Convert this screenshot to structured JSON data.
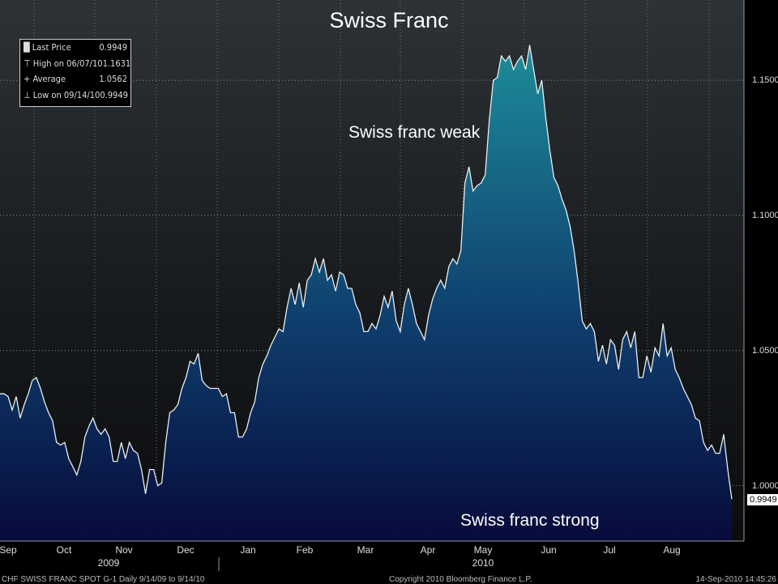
{
  "chart_data": {
    "type": "area",
    "title": "Swiss Franc",
    "annotations": [
      "Swiss franc weak",
      "Swiss franc strong"
    ],
    "x_tick_labels": [
      "Sep",
      "Oct",
      "Nov",
      "Dec",
      "Jan",
      "Feb",
      "Mar",
      "Apr",
      "May",
      "Jun",
      "Jul",
      "Aug"
    ],
    "year_labels": [
      "2009",
      "2010"
    ],
    "y_tick_labels": [
      "1.1500",
      "1.1000",
      "1.0500",
      "1.0000"
    ],
    "y_ticks": [
      1.15,
      1.1,
      1.05,
      1.0
    ],
    "ylim": [
      0.9795,
      1.1797
    ],
    "grid": true,
    "last_price_label": "0.9949",
    "legend": [
      {
        "label": "Last Price",
        "value": "0.9949",
        "icon": "square-icon"
      },
      {
        "label": "High on 06/07/10",
        "value": "1.1631",
        "icon": "high-marker-icon"
      },
      {
        "label": "Average",
        "value": "1.0562",
        "icon": "average-marker-icon"
      },
      {
        "label": "Low on 09/14/10",
        "value": "0.9949",
        "icon": "low-marker-icon"
      }
    ],
    "series": [
      {
        "name": "CHF Swiss Franc Spot",
        "values": [
          1.034,
          1.034,
          1.033,
          1.028,
          1.033,
          1.025,
          1.03,
          1.034,
          1.039,
          1.04,
          1.036,
          1.031,
          1.027,
          1.024,
          1.016,
          1.015,
          1.016,
          1.01,
          1.007,
          1.004,
          1.009,
          1.018,
          1.022,
          1.025,
          1.021,
          1.019,
          1.021,
          1.018,
          1.009,
          1.009,
          1.016,
          1.01,
          1.016,
          1.013,
          1.012,
          1.006,
          0.997,
          1.006,
          1.006,
          1.0,
          1.001,
          1.016,
          1.027,
          1.028,
          1.03,
          1.036,
          1.04,
          1.046,
          1.045,
          1.049,
          1.039,
          1.037,
          1.036,
          1.036,
          1.036,
          1.033,
          1.034,
          1.027,
          1.027,
          1.018,
          1.018,
          1.021,
          1.027,
          1.031,
          1.04,
          1.045,
          1.048,
          1.052,
          1.055,
          1.058,
          1.057,
          1.066,
          1.073,
          1.067,
          1.075,
          1.066,
          1.076,
          1.078,
          1.084,
          1.079,
          1.084,
          1.076,
          1.078,
          1.072,
          1.079,
          1.078,
          1.073,
          1.073,
          1.067,
          1.064,
          1.057,
          1.057,
          1.06,
          1.058,
          1.063,
          1.07,
          1.066,
          1.072,
          1.061,
          1.057,
          1.067,
          1.073,
          1.067,
          1.06,
          1.057,
          1.054,
          1.063,
          1.069,
          1.073,
          1.076,
          1.073,
          1.081,
          1.084,
          1.082,
          1.087,
          1.112,
          1.118,
          1.109,
          1.111,
          1.112,
          1.115,
          1.135,
          1.15,
          1.151,
          1.159,
          1.157,
          1.159,
          1.154,
          1.157,
          1.159,
          1.154,
          1.163,
          1.154,
          1.145,
          1.15,
          1.136,
          1.124,
          1.114,
          1.111,
          1.106,
          1.102,
          1.096,
          1.087,
          1.075,
          1.061,
          1.058,
          1.06,
          1.057,
          1.046,
          1.052,
          1.045,
          1.054,
          1.052,
          1.043,
          1.054,
          1.057,
          1.051,
          1.057,
          1.04,
          1.04,
          1.048,
          1.042,
          1.051,
          1.048,
          1.06,
          1.048,
          1.051,
          1.043,
          1.04,
          1.036,
          1.033,
          1.03,
          1.025,
          1.024,
          1.016,
          1.013,
          1.015,
          1.012,
          1.012,
          1.019,
          1.006,
          0.995
        ]
      }
    ]
  },
  "footer": {
    "left": "CHF  SWISS FRANC SPOT     G-1   Daily  9/14/09 to 9/14/10",
    "center": "Copyright 2010 Bloomberg Finance L.P.",
    "right": "14-Sep-2010 14:45:26"
  },
  "colors": {
    "fill_top": "#1d8c99",
    "fill_bottom": "#070b3a",
    "line": "#e8eef2"
  }
}
